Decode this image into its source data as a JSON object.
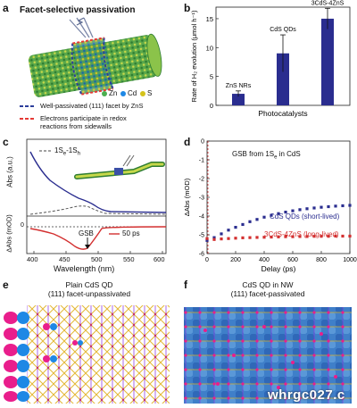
{
  "panels": {
    "a": {
      "label": "a",
      "title": "Facet-selective passivation",
      "legend": [
        {
          "text": "Zn",
          "color": "#4caf50"
        },
        {
          "text": "Cd",
          "color": "#1e88e5"
        },
        {
          "text": "S",
          "color": "#d4c21a"
        }
      ],
      "line1": "Well-passivated (111) facet by ZnS",
      "line2a": "Electrons participate in redox",
      "line2b": "reactions from sidewalls",
      "colors": {
        "blue_dash": "#2c3e9b",
        "red_dash": "#e53935"
      }
    },
    "b": {
      "label": "b"
    },
    "c": {
      "label": "c",
      "ylabel_top": "Abs (a.u.)",
      "ylabel_bottom": "ΔAbs (mOD)",
      "legend_dash": "1S",
      "legend_dash_sub1": "e",
      "legend_dash_mid": "-1S",
      "legend_dash_sub2": "h",
      "legend_red": "50 ps",
      "gsb": "GSB",
      "zero_tick": "0",
      "xlabel": "Wavelength (nm)",
      "xticks": [
        "400",
        "450",
        "500",
        "550",
        "600"
      ]
    },
    "d": {
      "label": "d",
      "title_pre": "GSB from 1S",
      "title_sub": "e",
      "title_post": " in CdS",
      "series1": "CdS QDs (short-lived)",
      "series2": "3CdS-4ZnS (long-lived)"
    },
    "e": {
      "label": "e",
      "cap1": "Plain CdS QD",
      "cap2": "(111) facet-unpassivated"
    },
    "f": {
      "label": "f",
      "cap1": "CdS QD in NW",
      "cap2": "(111) facet-passivated",
      "watermark": "whrgc027.c"
    }
  },
  "chart_data": [
    {
      "id": "b",
      "type": "bar",
      "categories": [
        "ZnS NRs",
        "CdS QDs",
        "3CdS-4ZnS"
      ],
      "values": [
        2.0,
        9.0,
        15.0
      ],
      "errors": [
        0.5,
        3.2,
        1.8
      ],
      "xlabel": "Photocatalysts",
      "ylabel": "Rate of H₂ evolution (μmol h⁻¹)",
      "ylim": [
        0,
        17
      ],
      "yticks": [
        "0",
        "5",
        "10",
        "15"
      ],
      "color": "#2a2d8f"
    },
    {
      "id": "d",
      "type": "scatter",
      "xlabel": "Delay (ps)",
      "ylabel": "ΔAbs (mOD)",
      "xlim": [
        0,
        1000
      ],
      "ylim": [
        -6,
        0
      ],
      "xticks": [
        "0",
        "200",
        "400",
        "600",
        "800",
        "1000"
      ],
      "yticks": [
        "0",
        "-1",
        "-2",
        "-3",
        "-4",
        "-5",
        "-6"
      ],
      "series": [
        {
          "name": "CdS QDs (short-lived)",
          "color": "#2a2d8f",
          "x": [
            0,
            50,
            100,
            150,
            200,
            250,
            300,
            350,
            400,
            450,
            500,
            550,
            600,
            650,
            700,
            750,
            800,
            850,
            900,
            950,
            1000
          ],
          "y": [
            -5.3,
            -5.15,
            -4.95,
            -4.75,
            -4.6,
            -4.45,
            -4.3,
            -4.18,
            -4.06,
            -3.96,
            -3.87,
            -3.79,
            -3.72,
            -3.66,
            -3.61,
            -3.57,
            -3.53,
            -3.5,
            -3.47,
            -3.45,
            -3.43
          ]
        },
        {
          "name": "3CdS-4ZnS (long-lived)",
          "color": "#d32f2f",
          "x": [
            0,
            50,
            100,
            150,
            200,
            250,
            300,
            350,
            400,
            450,
            500,
            550,
            600,
            650,
            700,
            750,
            800,
            850,
            900,
            950,
            1000
          ],
          "y": [
            -5.2,
            -5.25,
            -5.22,
            -5.2,
            -5.18,
            -5.16,
            -5.15,
            -5.14,
            -5.13,
            -5.12,
            -5.11,
            -5.1,
            -5.1,
            -5.09,
            -5.09,
            -5.08,
            -5.08,
            -5.08,
            -5.07,
            -5.07,
            -5.07
          ]
        }
      ]
    }
  ]
}
